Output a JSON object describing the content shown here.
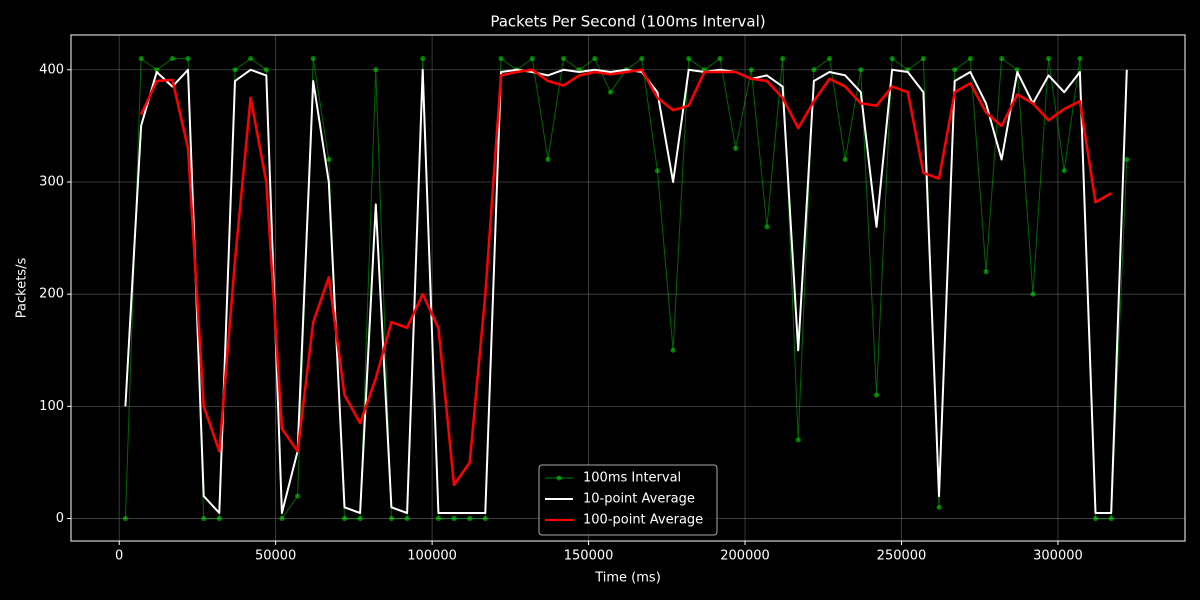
{
  "chart_data": {
    "type": "line",
    "title": "Packets Per Second (100ms Interval)",
    "xlabel": "Time (ms)",
    "ylabel": "Packets/s",
    "x": [
      2000,
      7000,
      12000,
      17000,
      22000,
      27000,
      32000,
      37000,
      42000,
      47000,
      52000,
      57000,
      62000,
      67000,
      72000,
      77000,
      82000,
      87000,
      92000,
      97000,
      102000,
      107000,
      112000,
      117000,
      122000,
      127000,
      132000,
      137000,
      142000,
      147000,
      152000,
      157000,
      162000,
      167000,
      172000,
      177000,
      182000,
      187000,
      192000,
      197000,
      202000,
      207000,
      212000,
      217000,
      222000,
      227000,
      232000,
      237000,
      242000,
      247000,
      252000,
      257000,
      262000,
      267000,
      272000,
      277000,
      282000,
      287000,
      292000,
      297000,
      302000,
      307000,
      312000,
      317000,
      322000
    ],
    "series": [
      {
        "name": "100ms Interval",
        "color": "#00ff00",
        "markers": true,
        "values": [
          0,
          410,
          400,
          410,
          410,
          0,
          0,
          400,
          410,
          400,
          0,
          20,
          410,
          320,
          0,
          0,
          400,
          0,
          0,
          410,
          0,
          0,
          0,
          0,
          410,
          400,
          410,
          320,
          410,
          400,
          410,
          380,
          400,
          410,
          310,
          150,
          410,
          400,
          410,
          330,
          400,
          260,
          410,
          70,
          400,
          410,
          320,
          400,
          110,
          410,
          400,
          410,
          10,
          400,
          410,
          220,
          410,
          400,
          200,
          410,
          310,
          410,
          0,
          0,
          320
        ]
      },
      {
        "name": "10-point Average",
        "color": "#ffffff",
        "markers": false,
        "values": [
          100,
          350,
          398,
          385,
          400,
          20,
          5,
          390,
          400,
          395,
          5,
          60,
          390,
          300,
          10,
          5,
          280,
          10,
          5,
          400,
          5,
          5,
          5,
          5,
          398,
          400,
          398,
          395,
          400,
          398,
          400,
          398,
          400,
          398,
          380,
          300,
          400,
          398,
          400,
          398,
          392,
          395,
          385,
          150,
          390,
          398,
          395,
          380,
          260,
          400,
          398,
          380,
          20,
          390,
          398,
          370,
          320,
          398,
          370,
          395,
          380,
          398,
          5,
          5,
          400
        ]
      },
      {
        "name": "100-point Average",
        "color": "#ff0000",
        "markers": false,
        "values": [
          null,
          360,
          390,
          391,
          330,
          100,
          60,
          230,
          375,
          300,
          80,
          60,
          175,
          215,
          110,
          85,
          125,
          175,
          170,
          200,
          170,
          30,
          50,
          200,
          395,
          398,
          400,
          390,
          386,
          395,
          398,
          396,
          398,
          400,
          375,
          364,
          368,
          398,
          398,
          398,
          392,
          390,
          375,
          348,
          372,
          392,
          385,
          370,
          368,
          385,
          380,
          308,
          303,
          380,
          388,
          362,
          350,
          378,
          370,
          355,
          365,
          372,
          282,
          290,
          null
        ]
      }
    ],
    "xlim": [
      -15400,
      340600
    ],
    "ylim": [
      -20,
      431
    ],
    "xticks": [
      0,
      50000,
      100000,
      150000,
      200000,
      250000,
      300000
    ],
    "yticks": [
      0,
      100,
      200,
      300,
      400
    ],
    "grid": true,
    "legend": "lower center"
  }
}
